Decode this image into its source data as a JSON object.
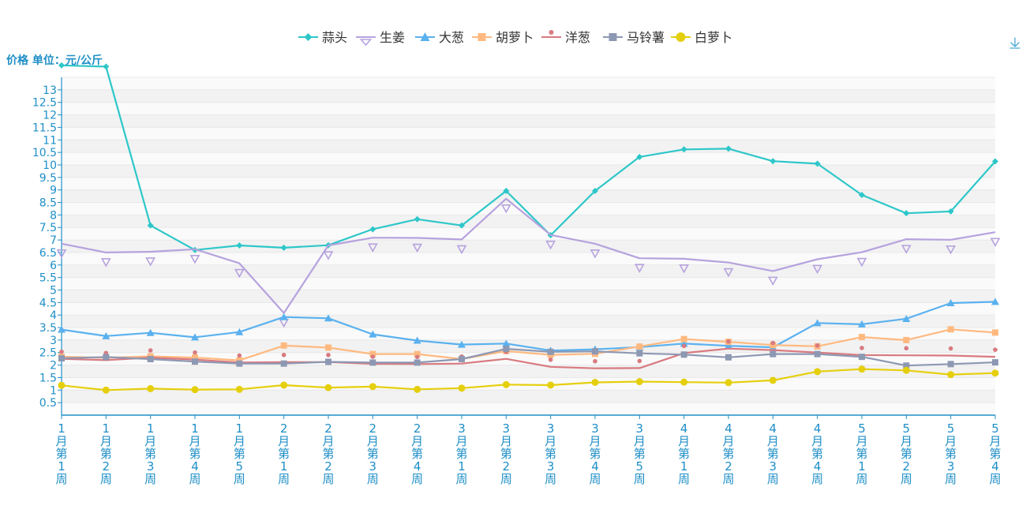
{
  "chart_data": {
    "type": "line",
    "title": "",
    "ylabel": "价格 单位：元/公斤",
    "xlabel": "",
    "categories": [
      "1月第1周",
      "1月第2周",
      "1月第3周",
      "1月第4周",
      "1月第5周",
      "2月第1周",
      "2月第2周",
      "2月第3周",
      "2月第4周",
      "3月第1周",
      "3月第2周",
      "3月第3周",
      "3月第4周",
      "3月第5周",
      "4月第1周",
      "4月第2周",
      "4月第3周",
      "4月第4周",
      "5月第1周",
      "5月第2周",
      "5月第3周",
      "5月第4周"
    ],
    "ylim": [
      0,
      13.5
    ],
    "yticks": [
      0.5,
      1,
      1.5,
      2,
      2.5,
      3,
      3.5,
      4,
      4.5,
      5,
      5.5,
      6,
      6.5,
      7,
      7.5,
      8,
      8.5,
      9,
      9.5,
      10,
      10.5,
      11,
      11.5,
      12,
      12.5,
      13
    ],
    "grid": true,
    "legend_position": "top-center",
    "series": [
      {
        "name": "蒜头",
        "color": "#2ec7c9",
        "symbol": "diamond",
        "values": [
          13.98,
          13.93,
          7.58,
          6.6,
          6.78,
          6.69,
          6.79,
          7.43,
          7.83,
          7.58,
          8.96,
          7.19,
          8.96,
          10.32,
          10.62,
          10.65,
          10.15,
          10.05,
          8.8,
          8.07,
          8.14,
          10.14
        ]
      },
      {
        "name": "生姜",
        "color": "#b6a2de",
        "symbol": "triangle-down",
        "values": [
          6.85,
          6.5,
          6.53,
          6.63,
          6.07,
          4.08,
          6.78,
          7.09,
          7.08,
          7.02,
          8.65,
          7.2,
          6.85,
          6.27,
          6.25,
          6.1,
          5.76,
          6.23,
          6.51,
          7.03,
          7.01,
          7.31
        ]
      },
      {
        "name": "大葱",
        "color": "#5ab1ef",
        "symbol": "triangle",
        "values": [
          3.42,
          3.16,
          3.29,
          3.11,
          3.32,
          3.92,
          3.87,
          3.23,
          2.98,
          2.82,
          2.86,
          2.58,
          2.63,
          2.72,
          2.86,
          2.77,
          2.71,
          3.68,
          3.63,
          3.85,
          4.48,
          4.53
        ]
      },
      {
        "name": "胡萝卜",
        "color": "#ffb980",
        "symbol": "square",
        "values": [
          2.34,
          2.29,
          2.35,
          2.3,
          2.19,
          2.78,
          2.7,
          2.44,
          2.44,
          2.24,
          2.56,
          2.41,
          2.45,
          2.74,
          3.04,
          2.93,
          2.8,
          2.75,
          3.12,
          3.0,
          3.43,
          3.3
        ]
      },
      {
        "name": "洋葱",
        "color": "#d87a80",
        "symbol": "pin",
        "values": [
          2.25,
          2.2,
          2.3,
          2.22,
          2.1,
          2.12,
          2.12,
          2.05,
          2.04,
          2.06,
          2.25,
          1.93,
          1.87,
          1.88,
          2.48,
          2.66,
          2.6,
          2.5,
          2.4,
          2.39,
          2.38,
          2.33
        ]
      },
      {
        "name": "马铃薯",
        "color": "#8d98b3",
        "symbol": "square",
        "values": [
          2.27,
          2.32,
          2.24,
          2.14,
          2.06,
          2.06,
          2.13,
          2.1,
          2.1,
          2.24,
          2.65,
          2.53,
          2.55,
          2.47,
          2.42,
          2.31,
          2.44,
          2.44,
          2.33,
          1.98,
          2.04,
          2.11
        ]
      },
      {
        "name": "白萝卜",
        "color": "#e5cf0d",
        "symbol": "circle",
        "values": [
          1.19,
          1.0,
          1.06,
          1.02,
          1.03,
          1.2,
          1.1,
          1.14,
          1.03,
          1.08,
          1.22,
          1.2,
          1.31,
          1.34,
          1.32,
          1.3,
          1.39,
          1.74,
          1.84,
          1.79,
          1.62,
          1.68
        ]
      }
    ]
  }
}
